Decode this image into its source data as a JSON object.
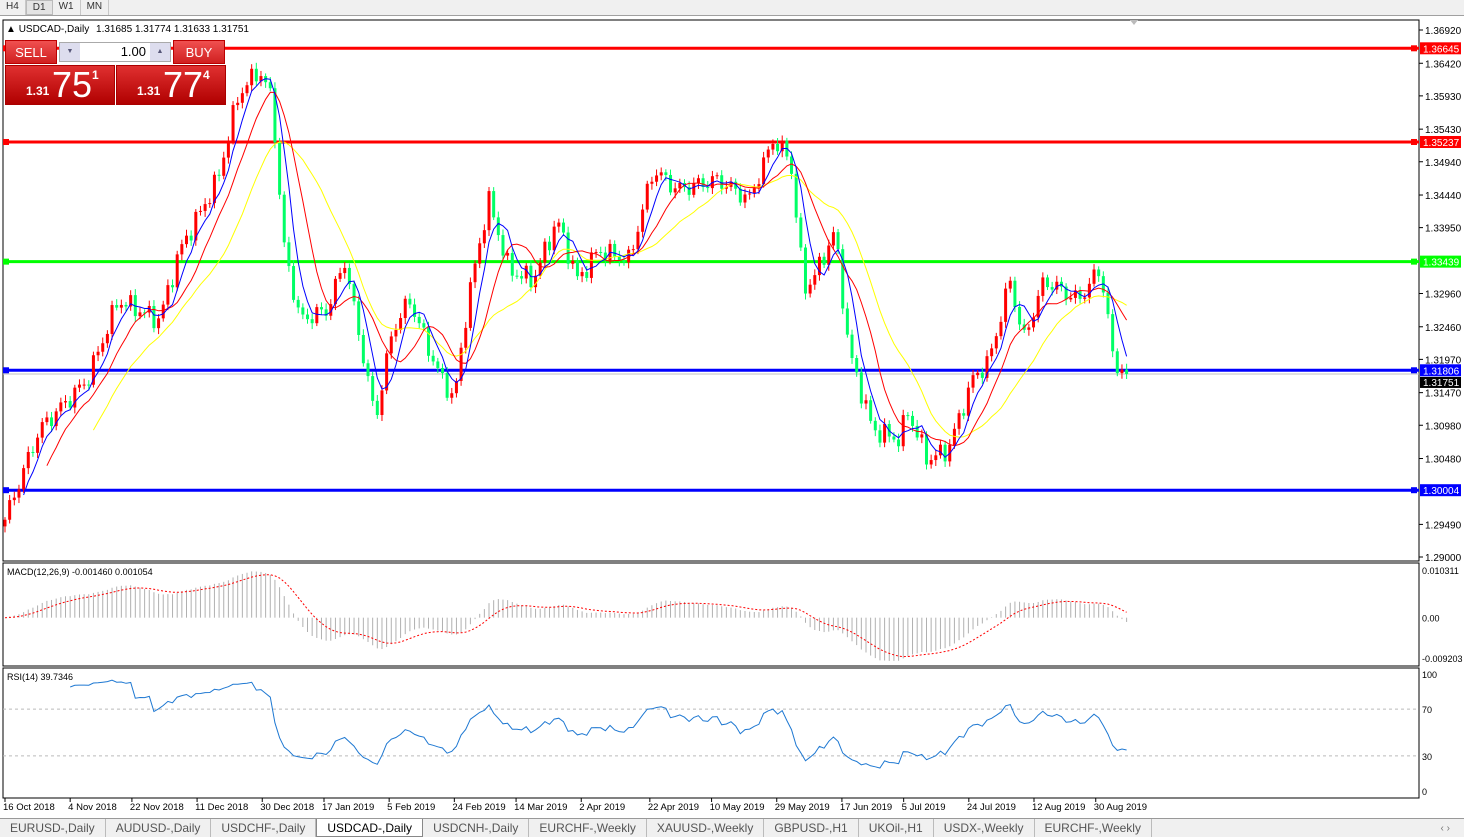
{
  "timeframes": [
    {
      "label": "H4",
      "active": false
    },
    {
      "label": "D1",
      "active": true
    },
    {
      "label": "W1",
      "active": false
    },
    {
      "label": "MN",
      "active": false
    }
  ],
  "header": {
    "symbol": "USDCAD-,Daily",
    "ohlc": "1.31685 1.31774 1.31633 1.31751"
  },
  "trade_panel": {
    "sell_label": "SELL",
    "buy_label": "BUY",
    "lot": "1.00",
    "sell": {
      "big": "1.31",
      "main": "75",
      "sup": "1"
    },
    "buy": {
      "big": "1.31",
      "main": "77",
      "sup": "4"
    }
  },
  "colors": {
    "bull": "#ff0000",
    "bear": "#00ff66",
    "ma_fast": "#0000ff",
    "ma_mid": "#ff0000",
    "ma_slow": "#ffff00",
    "rsi": "#1e78d2",
    "macd_hist": "#b0b0b0",
    "macd_signal": "#ff0000"
  },
  "chart_data": {
    "type": "candlestick",
    "title": "USDCAD-,Daily",
    "ylim": [
      1.29,
      1.3692
    ],
    "y_ticks": [
      "1.36920",
      "1.36420",
      "1.35930",
      "1.35430",
      "1.34940",
      "1.34440",
      "1.33950",
      "1.32960",
      "1.32460",
      "1.31970",
      "1.31470",
      "1.30980",
      "1.30480",
      "1.29490",
      "1.29000"
    ],
    "x_ticks": [
      "16 Oct 2018",
      "4 Nov 2018",
      "22 Nov 2018",
      "11 Dec 2018",
      "30 Dec 2018",
      "17 Jan 2019",
      "5 Feb 2019",
      "24 Feb 2019",
      "14 Mar 2019",
      "2 Apr 2019",
      "22 Apr 2019",
      "10 May 2019",
      "29 May 2019",
      "17 Jun 2019",
      "5 Jul 2019",
      "24 Jul 2019",
      "12 Aug 2019",
      "30 Aug 2019"
    ],
    "close_path": [
      [
        "2018-10-16",
        1.2956
      ],
      [
        "2018-10-26",
        1.3091
      ],
      [
        "2018-11-09",
        1.3166
      ],
      [
        "2018-11-18",
        1.3286
      ],
      [
        "2018-11-30",
        1.3256
      ],
      [
        "2018-12-06",
        1.3361
      ],
      [
        "2018-12-17",
        1.3467
      ],
      [
        "2018-12-23",
        1.3594
      ],
      [
        "2018-12-29",
        1.3632
      ],
      [
        "2019-01-02",
        1.3587
      ],
      [
        "2019-01-05",
        1.3376
      ],
      [
        "2019-01-10",
        1.3256
      ],
      [
        "2019-01-18",
        1.3271
      ],
      [
        "2019-01-23",
        1.3346
      ],
      [
        "2019-01-27",
        1.3241
      ],
      [
        "2019-02-01",
        1.3106
      ],
      [
        "2019-02-06",
        1.3241
      ],
      [
        "2019-02-11",
        1.3286
      ],
      [
        "2019-02-19",
        1.3181
      ],
      [
        "2019-02-24",
        1.3136
      ],
      [
        "2019-02-28",
        1.3286
      ],
      [
        "2019-03-06",
        1.3437
      ],
      [
        "2019-03-12",
        1.3331
      ],
      [
        "2019-03-19",
        1.3316
      ],
      [
        "2019-03-26",
        1.3406
      ],
      [
        "2019-04-01",
        1.3316
      ],
      [
        "2019-04-07",
        1.3361
      ],
      [
        "2019-04-16",
        1.3346
      ],
      [
        "2019-04-23",
        1.3482
      ],
      [
        "2019-04-30",
        1.3452
      ],
      [
        "2019-05-12",
        1.3467
      ],
      [
        "2019-05-21",
        1.3437
      ],
      [
        "2019-05-28",
        1.3527
      ],
      [
        "2019-06-02",
        1.3497
      ],
      [
        "2019-06-06",
        1.3301
      ],
      [
        "2019-06-10",
        1.3331
      ],
      [
        "2019-06-15",
        1.3391
      ],
      [
        "2019-06-19",
        1.3211
      ],
      [
        "2019-06-26",
        1.3091
      ],
      [
        "2019-07-04",
        1.3076
      ],
      [
        "2019-07-06",
        1.3121
      ],
      [
        "2019-07-12",
        1.3046
      ],
      [
        "2019-07-18",
        1.3061
      ],
      [
        "2019-07-25",
        1.3166
      ],
      [
        "2019-07-30",
        1.3196
      ],
      [
        "2019-08-05",
        1.3316
      ],
      [
        "2019-08-09",
        1.3226
      ],
      [
        "2019-08-15",
        1.3316
      ],
      [
        "2019-08-25",
        1.3286
      ],
      [
        "2019-08-31",
        1.3331
      ],
      [
        "2019-09-02",
        1.3286
      ],
      [
        "2019-09-04",
        1.3196
      ],
      [
        "2019-09-08",
        1.31751
      ]
    ],
    "hlines": [
      {
        "price": "1.36645",
        "color": "#ff0000"
      },
      {
        "price": "1.35237",
        "color": "#ff0000"
      },
      {
        "price": "1.33439",
        "color": "#00ff00"
      },
      {
        "price": "1.31806",
        "color": "#0000ff"
      },
      {
        "price": "1.30004",
        "color": "#0000ff"
      }
    ],
    "current_price": "1.31751",
    "macd": {
      "label": "MACD(12,26,9) -0.001460 0.001054",
      "ylim": [
        -0.009203,
        0.010311
      ],
      "ticks": [
        "0.010311",
        "0.00",
        "-0.009203"
      ]
    },
    "rsi": {
      "label": "RSI(14) 39.7346",
      "ylim": [
        0,
        100
      ],
      "ticks": [
        "100",
        "70",
        "30",
        "0"
      ],
      "levels": [
        70,
        30
      ]
    }
  },
  "bottom_tabs": [
    {
      "label": "EURUSD-,Daily"
    },
    {
      "label": "AUDUSD-,Daily"
    },
    {
      "label": "USDCHF-,Daily"
    },
    {
      "label": "USDCAD-,Daily",
      "active": true
    },
    {
      "label": "USDCNH-,Daily"
    },
    {
      "label": "EURCHF-,Weekly"
    },
    {
      "label": "XAUUSD-,Weekly"
    },
    {
      "label": "GBPUSD-,H1"
    },
    {
      "label": "UKOil-,H1"
    },
    {
      "label": "USDX-,Weekly"
    },
    {
      "label": "EURCHF-,Weekly"
    }
  ],
  "tab_arrows": "‹ ›"
}
